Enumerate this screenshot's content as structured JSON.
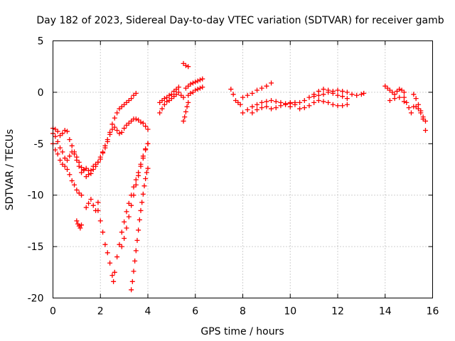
{
  "chart_data": {
    "type": "scatter",
    "title": "Day 182 of 2023, Sidereal Day-to-day VTEC variation (SDTVAR) for receiver gamb",
    "xlabel": "GPS time / hours",
    "ylabel": "SDTVAR / TECUs",
    "xlim": [
      0,
      16
    ],
    "ylim": [
      -20,
      5
    ],
    "xticks": [
      0,
      2,
      4,
      6,
      8,
      10,
      12,
      14,
      16
    ],
    "yticks": [
      5,
      0,
      -5,
      -10,
      -15,
      -20
    ],
    "xtick_labels": [
      "0",
      "2",
      "4",
      "6",
      "8",
      "10",
      "12",
      "14",
      "16"
    ],
    "ytick_labels": [
      "5",
      "0",
      "-5",
      "-10",
      "-15",
      "-20"
    ],
    "grid": true,
    "marker": "+",
    "color": "#ff0000",
    "series": [
      {
        "x": [
          0.0,
          0.1,
          0.2,
          0.3,
          0.4,
          0.5,
          0.6,
          0.7,
          0.8,
          0.9,
          1.0,
          1.1,
          1.2,
          1.3,
          1.4,
          1.5,
          1.6,
          1.7,
          1.8,
          1.9,
          2.0,
          2.1,
          2.2,
          2.3,
          2.4,
          2.5,
          2.6,
          2.7,
          2.8,
          2.9,
          3.0,
          3.1,
          3.2,
          3.3,
          3.4,
          3.5,
          3.6,
          3.7,
          3.8,
          3.9,
          4.0
        ],
        "y": [
          -3.5,
          -3.6,
          -3.8,
          -4.2,
          -4.0,
          -3.7,
          -3.8,
          -4.6,
          -5.2,
          -5.8,
          -6.3,
          -6.8,
          -7.3,
          -7.5,
          -8.2,
          -8.0,
          -7.6,
          -7.2,
          -7.0,
          -6.8,
          -6.5,
          -5.9,
          -5.4,
          -4.8,
          -4.1,
          -3.6,
          -3.4,
          -3.7,
          -4.0,
          -3.9,
          -3.5,
          -3.2,
          -3.0,
          -2.8,
          -2.6,
          -2.6,
          -2.7,
          -2.9,
          -3.0,
          -3.3,
          -3.6
        ]
      },
      {
        "x": [
          0.0,
          0.1,
          0.2,
          0.3,
          0.4,
          0.5,
          0.6,
          0.7,
          0.8,
          0.9,
          1.0,
          1.1,
          1.2,
          1.3,
          1.4,
          1.5,
          1.6,
          1.7,
          1.8,
          1.9,
          2.0,
          2.1,
          2.2,
          2.3,
          2.4,
          2.5,
          2.6,
          2.7,
          2.8,
          2.9,
          3.0,
          3.1,
          3.2,
          3.3,
          3.4,
          3.5
        ],
        "y": [
          -4.0,
          -4.3,
          -4.8,
          -5.4,
          -5.8,
          -6.4,
          -6.6,
          -6.2,
          -5.8,
          -6.0,
          -6.6,
          -7.2,
          -7.8,
          -7.6,
          -7.4,
          -7.6,
          -7.9,
          -7.5,
          -7.2,
          -6.8,
          -6.3,
          -5.8,
          -5.2,
          -4.6,
          -3.9,
          -3.1,
          -2.5,
          -2.0,
          -1.6,
          -1.4,
          -1.2,
          -1.0,
          -0.8,
          -0.6,
          -0.3,
          -0.1
        ]
      },
      {
        "x": [
          0.0,
          0.1,
          0.2,
          0.3,
          0.4,
          0.5,
          0.6,
          0.7,
          0.8,
          0.9,
          1.0,
          1.1,
          1.2
        ],
        "y": [
          -5.0,
          -5.6,
          -6.0,
          -6.6,
          -7.0,
          -7.2,
          -7.5,
          -8.0,
          -8.6,
          -9.0,
          -9.5,
          -9.8,
          -10.0
        ]
      },
      {
        "x": [
          1.0,
          1.05,
          1.1,
          1.15,
          1.2
        ],
        "y": [
          -12.5,
          -12.8,
          -13.0,
          -13.2,
          -12.9
        ]
      },
      {
        "x": [
          1.4,
          1.5,
          1.6,
          1.7,
          1.8,
          1.9
        ],
        "y": [
          -11.2,
          -10.8,
          -10.4,
          -11.0,
          -11.5,
          -10.7
        ]
      },
      {
        "x": [
          1.9,
          2.0,
          2.1,
          2.2,
          2.3,
          2.4,
          2.5,
          2.55,
          2.6,
          2.7,
          2.8,
          2.9,
          3.0,
          3.1,
          3.2,
          3.3,
          3.4,
          3.5,
          3.6,
          3.7,
          3.8,
          3.9,
          4.0
        ],
        "y": [
          -11.5,
          -12.5,
          -13.6,
          -14.8,
          -15.6,
          -16.6,
          -17.8,
          -18.4,
          -17.5,
          -16.0,
          -14.8,
          -13.6,
          -12.6,
          -11.6,
          -10.8,
          -10.0,
          -9.2,
          -8.5,
          -7.8,
          -7.0,
          -6.2,
          -5.5,
          -5.0
        ]
      },
      {
        "x": [
          3.3,
          3.35,
          3.4,
          3.45,
          3.5,
          3.55,
          3.6,
          3.65,
          3.7,
          3.75,
          3.8,
          3.85,
          3.9,
          3.95,
          4.0
        ],
        "y": [
          -19.2,
          -18.4,
          -17.4,
          -16.4,
          -15.4,
          -14.4,
          -13.4,
          -12.4,
          -11.5,
          -10.7,
          -9.9,
          -9.1,
          -8.4,
          -7.8,
          -7.4
        ]
      },
      {
        "x": [
          2.9,
          3.0,
          3.1,
          3.2,
          3.3,
          3.4,
          3.5,
          3.6,
          3.7,
          3.8,
          3.9,
          4.0
        ],
        "y": [
          -15.0,
          -14.2,
          -13.2,
          -12.1,
          -11.0,
          -10.0,
          -9.0,
          -8.1,
          -7.2,
          -6.4,
          -5.6,
          -5.0
        ]
      },
      {
        "x": [
          4.5,
          4.6,
          4.7,
          4.8,
          4.9,
          5.0,
          5.1,
          5.2,
          5.3,
          5.4,
          5.5
        ],
        "y": [
          -2.0,
          -1.6,
          -1.2,
          -0.9,
          -0.8,
          -0.6,
          -0.4,
          -0.2,
          0.0,
          -0.3,
          -0.5
        ]
      },
      {
        "x": [
          4.5,
          4.6,
          4.7,
          4.8,
          4.9,
          5.0,
          5.1,
          5.2,
          5.3
        ],
        "y": [
          -1.0,
          -0.8,
          -0.6,
          -0.5,
          -0.3,
          -0.2,
          0.1,
          0.3,
          0.5
        ]
      },
      {
        "x": [
          5.5,
          5.55,
          5.6,
          5.65,
          5.7
        ],
        "y": [
          -2.8,
          -2.4,
          -1.9,
          -1.4,
          -1.0
        ]
      },
      {
        "x": [
          5.5,
          5.6,
          5.7
        ],
        "y": [
          2.8,
          2.6,
          2.5
        ]
      },
      {
        "x": [
          5.6,
          5.7,
          5.8,
          5.9,
          6.0,
          6.1,
          6.2,
          6.3
        ],
        "y": [
          0.4,
          0.6,
          0.8,
          0.9,
          1.0,
          1.1,
          1.2,
          1.3
        ]
      },
      {
        "x": [
          5.7,
          5.8,
          5.9,
          6.0,
          6.1,
          6.2,
          6.3
        ],
        "y": [
          -0.3,
          -0.1,
          0.0,
          0.2,
          0.3,
          0.4,
          0.5
        ]
      },
      {
        "x": [
          7.5,
          7.6,
          7.7,
          7.8,
          7.9
        ],
        "y": [
          0.3,
          -0.2,
          -0.8,
          -1.0,
          -1.2
        ]
      },
      {
        "x": [
          8.0,
          8.2,
          8.4,
          8.6,
          8.8,
          9.0,
          9.2,
          9.4,
          9.6,
          9.8,
          10.0
        ],
        "y": [
          -2.0,
          -1.7,
          -1.4,
          -1.2,
          -1.0,
          -0.9,
          -0.8,
          -0.9,
          -1.0,
          -1.1,
          -1.0
        ]
      },
      {
        "x": [
          8.0,
          8.2,
          8.4,
          8.6,
          8.8,
          9.0,
          9.2
        ],
        "y": [
          -0.5,
          -0.3,
          -0.1,
          0.2,
          0.4,
          0.6,
          0.9
        ]
      },
      {
        "x": [
          8.4,
          8.6,
          8.8,
          9.0,
          9.2,
          9.4,
          9.6,
          9.8,
          10.0,
          10.2
        ],
        "y": [
          -2.0,
          -1.7,
          -1.5,
          -1.4,
          -1.6,
          -1.5,
          -1.3,
          -1.2,
          -1.1,
          -1.0
        ]
      },
      {
        "x": [
          10.0,
          10.2,
          10.4,
          10.6,
          10.8,
          11.0,
          11.2,
          11.4,
          11.6,
          11.8,
          12.0,
          12.2,
          12.4
        ],
        "y": [
          -1.4,
          -1.2,
          -1.0,
          -0.8,
          -0.5,
          -0.2,
          0.1,
          0.3,
          0.2,
          -0.1,
          -0.3,
          -0.4,
          -0.6
        ]
      },
      {
        "x": [
          10.4,
          10.6,
          10.8,
          11.0,
          11.2,
          11.4,
          11.6,
          11.8,
          12.0,
          12.2,
          12.4
        ],
        "y": [
          -1.6,
          -1.5,
          -1.3,
          -1.0,
          -0.8,
          -0.9,
          -1.0,
          -1.2,
          -1.3,
          -1.3,
          -1.2
        ]
      },
      {
        "x": [
          11.0,
          11.2,
          11.4,
          11.6,
          11.8,
          12.0,
          12.2,
          12.4,
          12.6,
          12.8,
          13.0,
          13.1
        ],
        "y": [
          -0.4,
          -0.3,
          -0.2,
          0.0,
          0.1,
          0.2,
          0.1,
          0.0,
          -0.2,
          -0.3,
          -0.2,
          -0.1
        ]
      },
      {
        "x": [
          14.0,
          14.1,
          14.2,
          14.3,
          14.4,
          14.5,
          14.6,
          14.7,
          14.8
        ],
        "y": [
          0.6,
          0.4,
          0.2,
          0.0,
          -0.2,
          0.1,
          0.3,
          0.2,
          0.0
        ]
      },
      {
        "x": [
          14.2,
          14.4,
          14.6,
          14.8
        ],
        "y": [
          -0.8,
          -0.6,
          -0.5,
          -0.9
        ]
      },
      {
        "x": [
          14.8,
          14.9,
          15.0,
          15.1,
          15.2
        ],
        "y": [
          -0.5,
          -1.0,
          -1.5,
          -2.0,
          -1.4
        ]
      },
      {
        "x": [
          15.2,
          15.3,
          15.4,
          15.5,
          15.6,
          15.7
        ],
        "y": [
          -0.2,
          -0.6,
          -1.2,
          -1.8,
          -2.6,
          -3.7
        ]
      },
      {
        "x": [
          15.3,
          15.4,
          15.5,
          15.6,
          15.7
        ],
        "y": [
          -1.4,
          -1.6,
          -2.0,
          -2.4,
          -2.8
        ]
      }
    ]
  }
}
